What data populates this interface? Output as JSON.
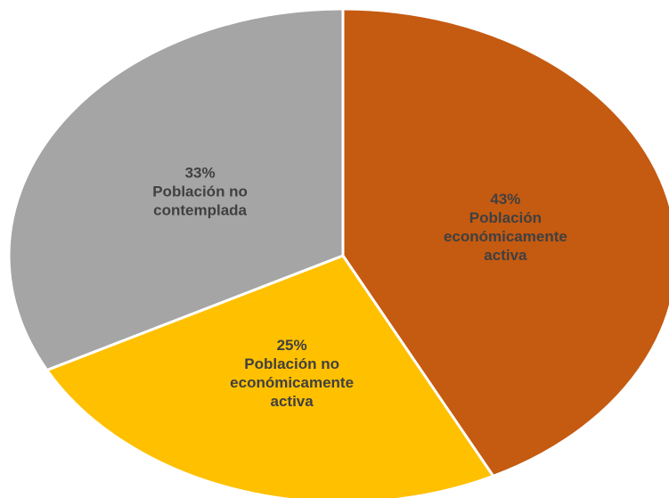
{
  "chart_data": {
    "type": "pie",
    "categories": [
      "Población económicamente activa",
      "Población no económicamente activa",
      "Población no contemplada"
    ],
    "values": [
      43,
      25,
      33
    ],
    "value_labels": [
      "43%",
      "25%",
      "33%"
    ],
    "colors": [
      "#c55a11",
      "#ffc000",
      "#a5a5a5"
    ]
  }
}
